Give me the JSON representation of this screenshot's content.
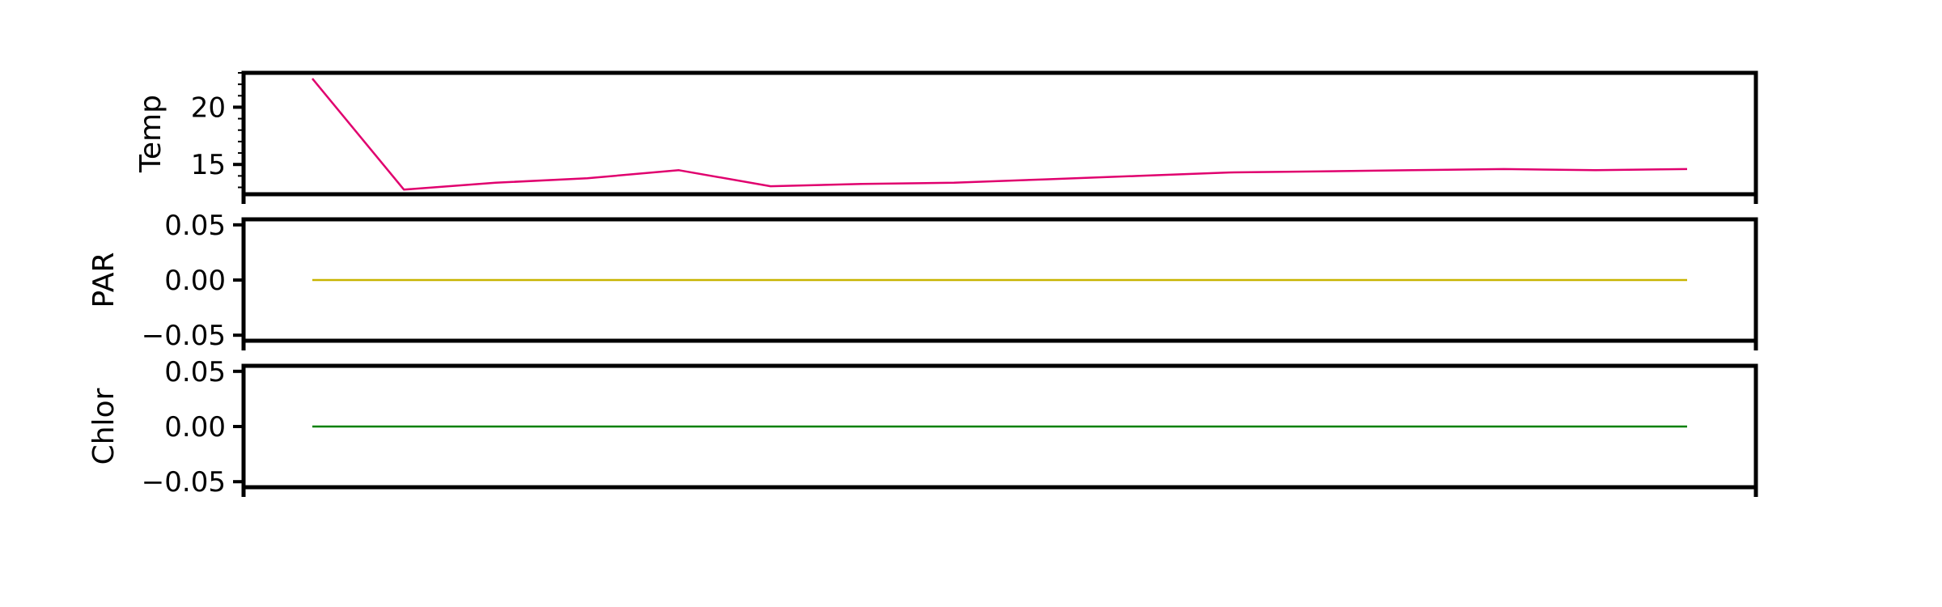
{
  "chart_data": [
    {
      "type": "line",
      "title": "",
      "xlabel": "",
      "ylabel": "Temp",
      "x": [
        0,
        1,
        2,
        3,
        4,
        5,
        6,
        7,
        8,
        9,
        10,
        11,
        12,
        13,
        14,
        15
      ],
      "series": [
        {
          "name": "Temp",
          "color": "#e0006e",
          "values": [
            22.5,
            12.8,
            13.4,
            13.8,
            14.5,
            13.1,
            13.3,
            13.4,
            13.7,
            14.0,
            14.3,
            14.4,
            14.5,
            14.6,
            14.5,
            14.6
          ]
        }
      ],
      "ylim": [
        12.4,
        23.0
      ],
      "yticks": [
        15,
        20
      ],
      "ytick_labels": [
        "15",
        "20"
      ],
      "minor_yticks": [
        13,
        14,
        16,
        17,
        18,
        19,
        21,
        22,
        23
      ],
      "xlim": [
        -0.75,
        15.75
      ],
      "grid": false
    },
    {
      "type": "line",
      "title": "",
      "xlabel": "",
      "ylabel": "PAR",
      "x": [
        0,
        1,
        2,
        3,
        4,
        5,
        6,
        7,
        8,
        9,
        10,
        11,
        12,
        13,
        14,
        15
      ],
      "series": [
        {
          "name": "PAR",
          "color": "#c8b400",
          "values": [
            0,
            0,
            0,
            0,
            0,
            0,
            0,
            0,
            0,
            0,
            0,
            0,
            0,
            0,
            0,
            0
          ]
        }
      ],
      "ylim": [
        -0.055,
        0.055
      ],
      "yticks": [
        -0.05,
        0.0,
        0.05
      ],
      "ytick_labels": [
        "−0.05",
        "0.00",
        "0.05"
      ],
      "xlim": [
        -0.75,
        15.75
      ],
      "grid": false
    },
    {
      "type": "line",
      "title": "",
      "xlabel": "",
      "ylabel": "Chlor",
      "x": [
        0,
        1,
        2,
        3,
        4,
        5,
        6,
        7,
        8,
        9,
        10,
        11,
        12,
        13,
        14,
        15
      ],
      "series": [
        {
          "name": "Chlor",
          "color": "#008000",
          "values": [
            0,
            0,
            0,
            0,
            0,
            0,
            0,
            0,
            0,
            0,
            0,
            0,
            0,
            0,
            0,
            0
          ]
        }
      ],
      "ylim": [
        -0.055,
        0.055
      ],
      "yticks": [
        -0.05,
        0.0,
        0.05
      ],
      "ytick_labels": [
        "−0.05",
        "0.00",
        "0.05"
      ],
      "xlim": [
        -0.75,
        15.75
      ],
      "grid": false
    }
  ]
}
